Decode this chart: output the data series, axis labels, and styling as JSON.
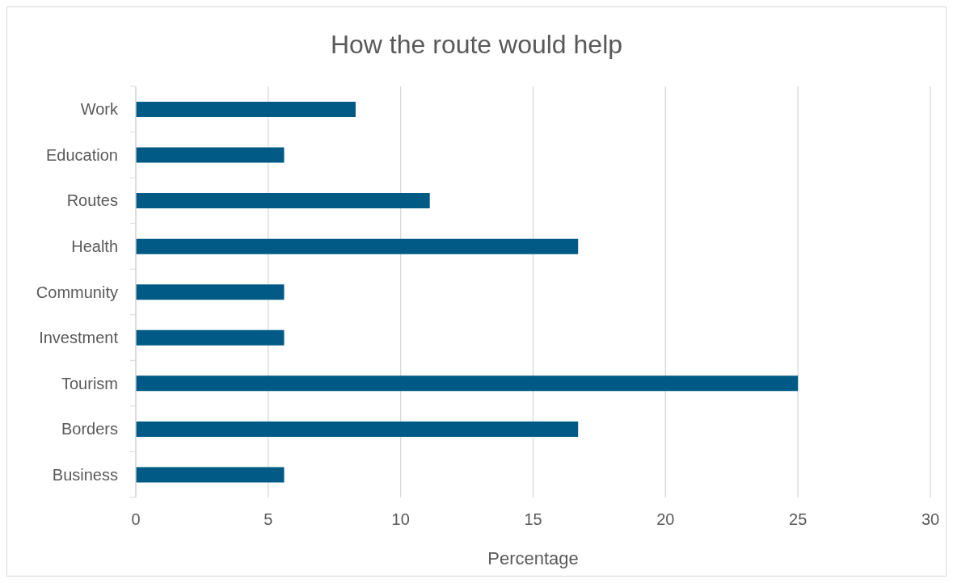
{
  "chart_data": {
    "type": "bar",
    "orientation": "horizontal",
    "title": "How the route would help",
    "xlabel": "Percentage",
    "categories": [
      "Work",
      "Education",
      "Routes",
      "Health",
      "Community",
      "Investment",
      "Tourism",
      "Borders",
      "Business"
    ],
    "values": [
      8.3,
      5.6,
      11.1,
      16.7,
      5.6,
      5.6,
      25,
      16.7,
      5.6
    ],
    "color": "#005a85",
    "xlim": [
      0,
      30
    ],
    "xticks": [
      0,
      5,
      10,
      15,
      20,
      25,
      30
    ],
    "grid": "x"
  }
}
